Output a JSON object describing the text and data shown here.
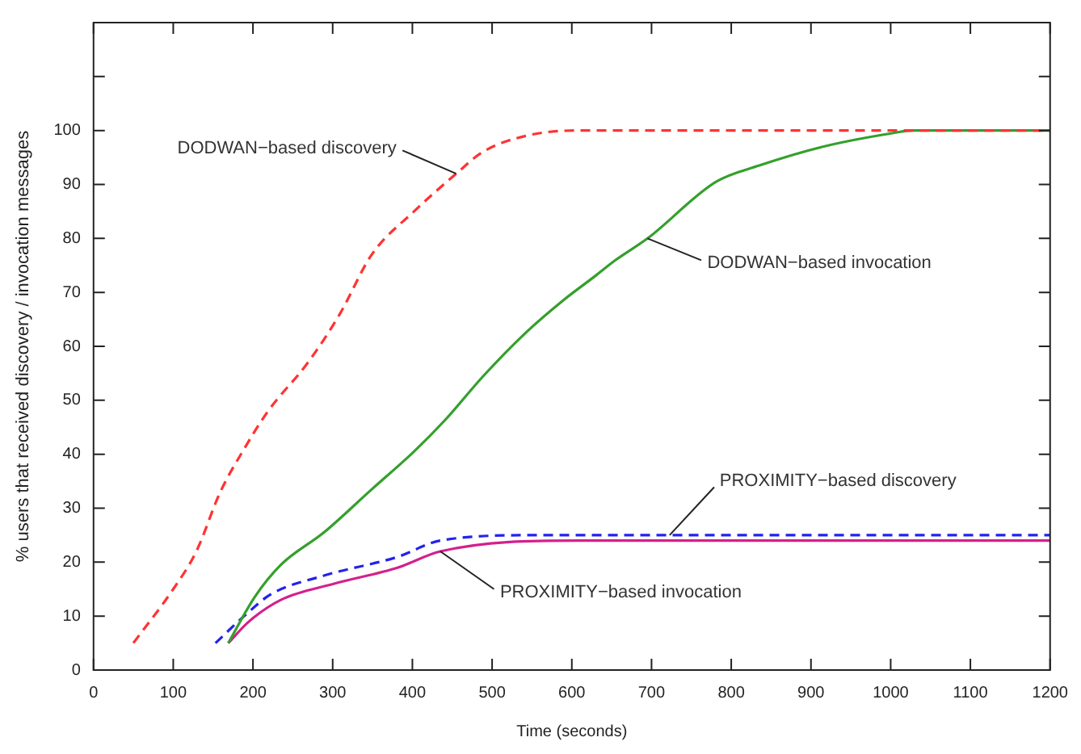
{
  "chart_data": {
    "type": "line",
    "xlabel": "Time (seconds)",
    "ylabel": "% users that received discovery / invocation messages",
    "xlim": [
      0,
      1200
    ],
    "xticks": [
      0,
      100,
      200,
      300,
      400,
      500,
      600,
      700,
      800,
      900,
      1000,
      1100,
      1200
    ],
    "ylim": [
      0,
      120
    ],
    "yticks": [
      0,
      10,
      20,
      30,
      40,
      50,
      60,
      70,
      80,
      90,
      100,
      {
        "value": 110,
        "label": null
      },
      {
        "value": 120,
        "label": null
      }
    ],
    "legend": false,
    "marker": "none",
    "series": [
      {
        "name": "DODWAN−based discovery",
        "color": "#ff3333",
        "line_style": "dashed",
        "x": [
          50,
          100,
          129,
          159,
          189,
          219,
          269,
          309,
          349,
          402,
          455,
          488,
          542,
          608,
          1200
        ],
        "values": [
          5,
          15,
          22,
          33,
          41,
          48,
          57,
          66,
          77,
          85,
          92,
          96,
          99,
          100,
          100
        ]
      },
      {
        "name": "DODWAN−based invocation",
        "color": "#33a02c",
        "line_style": "solid",
        "x": [
          169,
          202,
          235,
          289,
          349,
          402,
          442,
          489,
          542,
          589,
          629,
          655,
          695,
          781,
          835,
          915,
          1002,
          1028,
          1200
        ],
        "values": [
          5,
          13.5,
          19.5,
          25.5,
          33.5,
          40.5,
          46.5,
          54.5,
          62.5,
          68.5,
          73,
          76,
          80,
          90.5,
          93.5,
          97,
          99.5,
          100,
          100
        ]
      },
      {
        "name": "PROXIMITY−based discovery",
        "color": "#2222ee",
        "line_style": "dashed",
        "x": [
          153,
          189,
          222,
          289,
          382,
          435,
          555,
          1200
        ],
        "values": [
          5,
          10,
          14,
          17.5,
          21,
          24,
          25,
          25
        ]
      },
      {
        "name": "PROXIMITY−based invocation",
        "color": "#d4208c",
        "line_style": "solid",
        "x": [
          169,
          195,
          235,
          302,
          382,
          435,
          609,
          1200
        ],
        "values": [
          5,
          9,
          13,
          16,
          19,
          22,
          24,
          24
        ]
      }
    ]
  }
}
